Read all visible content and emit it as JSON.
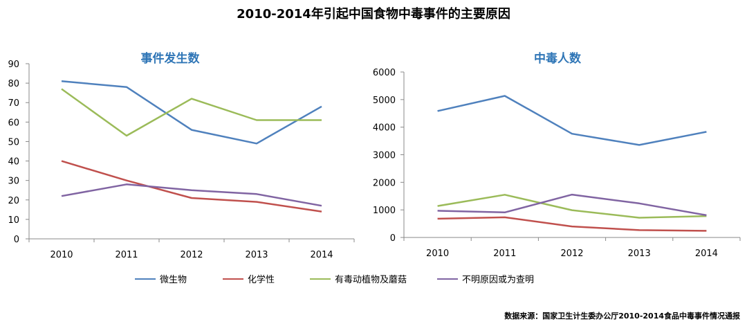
{
  "title": "2010-2014年引起中国食物中毒事件的主要原因",
  "source": "数据来源：国家卫生计生委办公厅2010-2014食品中毒事件情况通报",
  "series_meta": [
    {
      "name": "微生物",
      "color": "#4f81bd"
    },
    {
      "name": "化学性",
      "color": "#c0504d"
    },
    {
      "name": "有毒动植物及蘑菇",
      "color": "#9bbb59"
    },
    {
      "name": "不明原因或为查明",
      "color": "#8064a2"
    }
  ],
  "legend": {
    "placement": "bottom"
  },
  "chart_data": [
    {
      "type": "line",
      "title": "事件发生数",
      "categories": [
        "2010",
        "2011",
        "2012",
        "2013",
        "2014"
      ],
      "ylim": [
        0,
        90
      ],
      "yticks": [
        0,
        10,
        20,
        30,
        40,
        50,
        60,
        70,
        80,
        90
      ],
      "grid": false,
      "series": [
        {
          "name": "微生物",
          "values": [
            81,
            78,
            56,
            49,
            68
          ]
        },
        {
          "name": "化学性",
          "values": [
            40,
            30,
            21,
            19,
            14
          ]
        },
        {
          "name": "有毒动植物及蘑菇",
          "values": [
            77,
            53,
            72,
            61,
            61
          ]
        },
        {
          "name": "不明原因或为查明",
          "values": [
            22,
            28,
            25,
            23,
            17
          ]
        }
      ]
    },
    {
      "type": "line",
      "title": "中毒人数",
      "categories": [
        "2010",
        "2011",
        "2012",
        "2013",
        "2014"
      ],
      "ylim": [
        0,
        6000
      ],
      "yticks": [
        0,
        1000,
        2000,
        3000,
        4000,
        5000,
        6000
      ],
      "grid": false,
      "series": [
        {
          "name": "微生物",
          "values": [
            4585,
            5135,
            3760,
            3355,
            3830
          ]
        },
        {
          "name": "化学性",
          "values": [
            680,
            730,
            400,
            265,
            240
          ]
        },
        {
          "name": "有毒动植物及蘑菇",
          "values": [
            1140,
            1550,
            990,
            715,
            775
          ]
        },
        {
          "name": "不明原因或为查明",
          "values": [
            970,
            910,
            1555,
            1235,
            805
          ]
        }
      ]
    }
  ]
}
